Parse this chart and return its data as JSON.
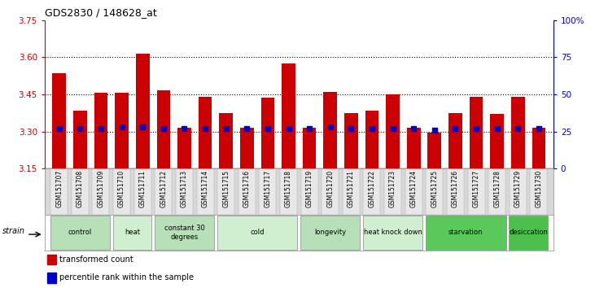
{
  "title": "GDS2830 / 148628_at",
  "samples": [
    "GSM151707",
    "GSM151708",
    "GSM151709",
    "GSM151710",
    "GSM151711",
    "GSM151712",
    "GSM151713",
    "GSM151714",
    "GSM151715",
    "GSM151716",
    "GSM151717",
    "GSM151718",
    "GSM151719",
    "GSM151720",
    "GSM151721",
    "GSM151722",
    "GSM151723",
    "GSM151724",
    "GSM151725",
    "GSM151726",
    "GSM151727",
    "GSM151728",
    "GSM151729",
    "GSM151730"
  ],
  "bar_values": [
    3.535,
    3.385,
    3.455,
    3.455,
    3.615,
    3.465,
    3.315,
    3.44,
    3.375,
    3.315,
    3.435,
    3.575,
    3.315,
    3.46,
    3.375,
    3.385,
    3.45,
    3.315,
    3.295,
    3.375,
    3.44,
    3.37,
    3.44,
    3.315
  ],
  "percentile_values": [
    27,
    27,
    27,
    28,
    28,
    27,
    27,
    27,
    27,
    27,
    27,
    27,
    27,
    28,
    27,
    27,
    27,
    27,
    26,
    27,
    27,
    27,
    27,
    27
  ],
  "bar_bottom": 3.15,
  "ylim_left": [
    3.15,
    3.75
  ],
  "ylim_right": [
    0,
    100
  ],
  "yticks_left": [
    3.15,
    3.3,
    3.45,
    3.6,
    3.75
  ],
  "yticks_right": [
    0,
    25,
    50,
    75,
    100
  ],
  "ytick_labels_right": [
    "0",
    "25",
    "50",
    "75",
    "100%"
  ],
  "hlines": [
    3.3,
    3.45,
    3.6
  ],
  "bar_color": "#cc0000",
  "dot_color": "#0000cc",
  "bar_width": 0.65,
  "groups": [
    {
      "label": "control",
      "start": 0,
      "end": 2,
      "color": "#b8e0b8"
    },
    {
      "label": "heat",
      "start": 3,
      "end": 4,
      "color": "#d0eed0"
    },
    {
      "label": "constant 30\ndegrees",
      "start": 5,
      "end": 7,
      "color": "#b8e0b8"
    },
    {
      "label": "cold",
      "start": 8,
      "end": 11,
      "color": "#d0eed0"
    },
    {
      "label": "longevity",
      "start": 12,
      "end": 14,
      "color": "#b8e0b8"
    },
    {
      "label": "heat knock down",
      "start": 15,
      "end": 17,
      "color": "#d0eed0"
    },
    {
      "label": "starvation",
      "start": 18,
      "end": 21,
      "color": "#5bc85b"
    },
    {
      "label": "desiccation",
      "start": 22,
      "end": 23,
      "color": "#4cbf4c"
    }
  ],
  "background_color": "#ffffff",
  "tick_color_left": "#cc0000",
  "tick_color_right": "#0000cc",
  "sample_bg_color": "#d8d8d8",
  "sample_cell_color": "#e8e8e8"
}
